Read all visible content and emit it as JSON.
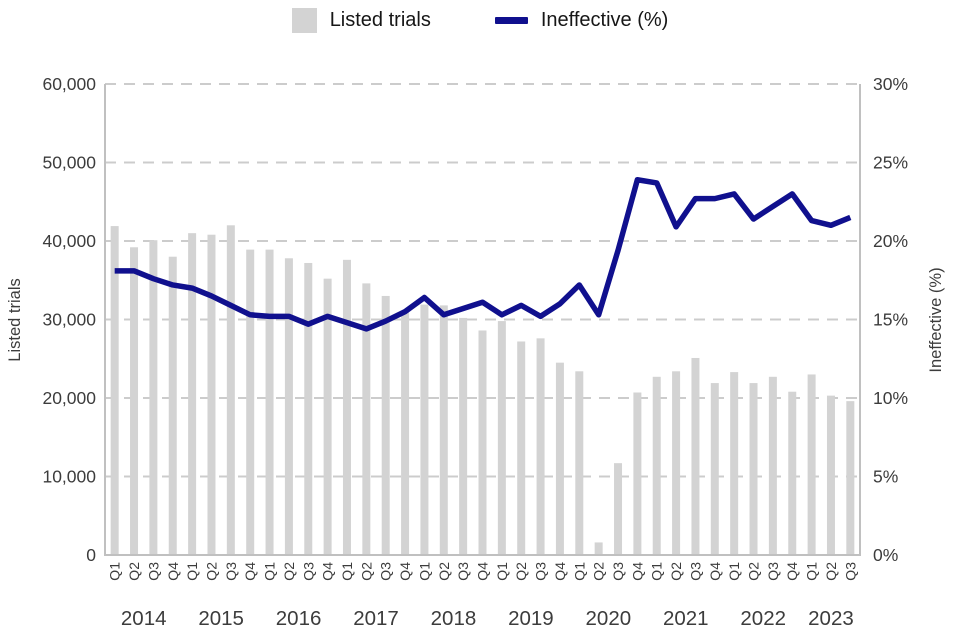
{
  "legend": {
    "bars": "Listed trials",
    "line": "Ineffective (%)"
  },
  "colors": {
    "bar": "#d3d3d3",
    "line": "#10108e",
    "grid": "#cccccc",
    "axis": "#c0c0c0",
    "text": "#3c3c3c",
    "legend_text": "#161616"
  },
  "chart_data": {
    "type": "combo-bar-line",
    "title": "",
    "categories": [
      "2014 Q1",
      "2014 Q2",
      "2014 Q3",
      "2014 Q4",
      "2015 Q1",
      "2015 Q2",
      "2015 Q3",
      "2015 Q4",
      "2016 Q1",
      "2016 Q2",
      "2016 Q3",
      "2016 Q4",
      "2017 Q1",
      "2017 Q2",
      "2017 Q3",
      "2017 Q4",
      "2018 Q1",
      "2018 Q2",
      "2018 Q3",
      "2018 Q4",
      "2019 Q1",
      "2019 Q2",
      "2019 Q3",
      "2019 Q4",
      "2020 Q1",
      "2020 Q2",
      "2020 Q3",
      "2020 Q4",
      "2021 Q1",
      "2021 Q2",
      "2021 Q3",
      "2021 Q4",
      "2022 Q1",
      "2022 Q2",
      "2022 Q3",
      "2022 Q4",
      "2023 Q1",
      "2023 Q2",
      "2023 Q3"
    ],
    "years_row": [
      {
        "label": "2014",
        "count": 4
      },
      {
        "label": "2015",
        "count": 4
      },
      {
        "label": "2016",
        "count": 4
      },
      {
        "label": "2017",
        "count": 4
      },
      {
        "label": "2018",
        "count": 4
      },
      {
        "label": "2019",
        "count": 4
      },
      {
        "label": "2020",
        "count": 4
      },
      {
        "label": "2021",
        "count": 4
      },
      {
        "label": "2022",
        "count": 4
      },
      {
        "label": "2023",
        "count": 3
      }
    ],
    "series": [
      {
        "name": "Listed trials",
        "type": "bar",
        "y_axis": "left",
        "values": [
          41900,
          39200,
          40100,
          38000,
          41000,
          40800,
          42000,
          38900,
          38900,
          37800,
          37200,
          35200,
          37600,
          34600,
          33000,
          31000,
          31900,
          31800,
          30200,
          28600,
          29800,
          27200,
          27600,
          24500,
          23400,
          1600,
          11700,
          20700,
          22700,
          23400,
          25100,
          21900,
          23300,
          21900,
          22700,
          20800,
          23000,
          20300,
          19600
        ]
      },
      {
        "name": "Ineffective (%)",
        "type": "line",
        "y_axis": "right",
        "values": [
          18.1,
          18.1,
          17.6,
          17.2,
          17.0,
          16.5,
          15.9,
          15.3,
          15.2,
          15.2,
          14.7,
          15.2,
          14.8,
          14.4,
          14.9,
          15.5,
          16.4,
          15.3,
          15.7,
          16.1,
          15.3,
          15.9,
          15.2,
          16.0,
          17.2,
          15.3,
          19.4,
          23.9,
          23.7,
          20.9,
          22.7,
          22.7,
          23.0,
          21.4,
          22.2,
          23.0,
          21.3,
          21.0,
          21.5
        ]
      }
    ],
    "left_axis": {
      "title": "Listed trials",
      "min": 0,
      "max": 60000,
      "tick_step": 10000,
      "tick_labels": [
        "0",
        "10,000",
        "20,000",
        "30,000",
        "40,000",
        "50,000",
        "60,000"
      ]
    },
    "right_axis": {
      "title": "Ineffective (%)",
      "min": 0,
      "max": 30,
      "tick_step": 5,
      "tick_labels": [
        "0%",
        "5%",
        "10%",
        "15%",
        "20%",
        "25%",
        "30%"
      ]
    },
    "grid": "horizontal-dashed",
    "legend_position": "top-center"
  }
}
